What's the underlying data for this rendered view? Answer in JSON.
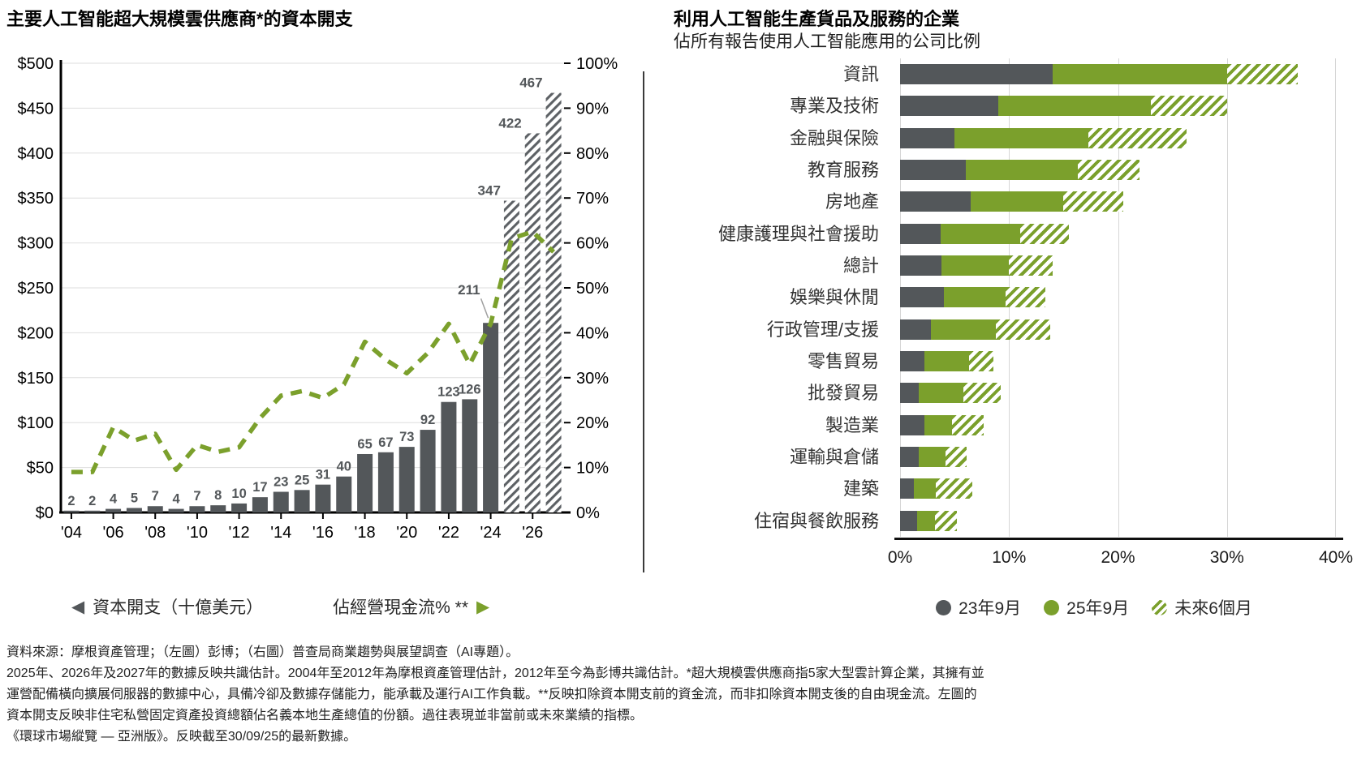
{
  "left": {
    "title": "主要人工智能超大規模雲供應商*的資本開支",
    "legend_bars": "資本開支（十億美元）",
    "legend_line": "佔經營現金流% **"
  },
  "right": {
    "title": "利用人工智能生產貨品及服務的企業",
    "subtitle": "佔所有報告使用人工智能應用的公司比例",
    "legend": [
      "23年9月",
      "25年9月",
      "未來6個月"
    ]
  },
  "footnotes": [
    "資料來源：摩根資產管理；（左圖）彭博；（右圖）普查局商業趨勢與展望調查（AI專題）。",
    "2025年、2026年及2027年的數據反映共識估計。2004年至2012年為摩根資產管理估計，2012年至今為彭博共識估計。*超大規模雲供應商指5家大型雲計算企業，其擁有並",
    "運營配備橫向擴展伺服器的數據中心，具備冷卻及數據存儲能力，能承載及運行AI工作負載。**反映扣除資本開支前的資金流，而非扣除資本開支後的自由現金流。左圖的",
    "資本開支反映非住宅私營固定資產投資總額佔名義本地生產總值的份額。過往表現並非當前或未來業績的指標。",
    "《環球市場縱覽 — 亞洲版》。反映截至30/09/25的最新數據。"
  ],
  "colors": {
    "dark": "#53575A",
    "green": "#7BA02C",
    "gridline": "#dedede",
    "hatch_dark": "#5d6165"
  },
  "chart_data": [
    {
      "type": "bar",
      "title": "主要人工智能超大規模雲供應商*的資本開支",
      "years": [
        2004,
        2005,
        2006,
        2007,
        2008,
        2009,
        2010,
        2011,
        2012,
        2013,
        2014,
        2015,
        2016,
        2017,
        2018,
        2019,
        2020,
        2021,
        2022,
        2023,
        2024,
        2025,
        2026,
        2027
      ],
      "x_tick_labels": [
        "'04",
        "'06",
        "'08",
        "'10",
        "'12",
        "'14",
        "'16",
        "'18",
        "'20",
        "'22",
        "'24",
        "'26"
      ],
      "series": [
        {
          "name": "資本開支（十億美元）",
          "type": "bar",
          "axis": "left",
          "values": [
            2,
            2,
            4,
            5,
            7,
            4,
            7,
            8,
            10,
            17,
            23,
            25,
            31,
            40,
            65,
            67,
            73,
            92,
            123,
            126,
            211,
            347,
            422,
            467
          ]
        },
        {
          "name": "佔經營現金流% **",
          "type": "line",
          "axis": "right",
          "values": [
            9,
            9,
            19,
            16,
            17.5,
            9.5,
            15,
            13.5,
            14.5,
            21,
            26,
            27,
            25.5,
            28.5,
            38,
            34,
            31,
            35.5,
            42,
            33,
            42,
            61,
            62.5,
            58
          ]
        }
      ],
      "forecast_hatched_years": [
        2025,
        2026,
        2027
      ],
      "ylim_left": [
        0,
        500
      ],
      "ylim_right": [
        0,
        100
      ],
      "left_tick_step": 50,
      "right_tick_step": 10,
      "grid": true,
      "legend_position": "bottom"
    },
    {
      "type": "bar",
      "orientation": "horizontal-stacked",
      "title": "利用人工智能生產貨品及服務的企業",
      "subtitle": "佔所有報告使用人工智能應用的公司比例",
      "categories": [
        "資訊",
        "專業及技術",
        "金融與保險",
        "教育服務",
        "房地產",
        "健康護理與社會援助",
        "總計",
        "娛樂與休閒",
        "行政管理/支援",
        "零售貿易",
        "批發貿易",
        "製造業",
        "運輸與倉儲",
        "建築",
        "住宿與餐飲服務"
      ],
      "series": [
        {
          "name": "23年9月",
          "note": "cumulative share %",
          "values": [
            14,
            9,
            5,
            6,
            6.5,
            3.7,
            3.8,
            4,
            2.8,
            2.2,
            1.7,
            2.2,
            1.7,
            1.3,
            1.6
          ]
        },
        {
          "name": "25年9月",
          "note": "cumulative share %",
          "values": [
            30,
            23,
            17.3,
            16.3,
            15,
            11,
            10,
            9.7,
            8.8,
            6.3,
            5.8,
            4.8,
            4.2,
            3.3,
            3.2
          ]
        },
        {
          "name": "未來6個月",
          "note": "cumulative share %",
          "values": [
            36.5,
            30,
            26.3,
            22,
            20.5,
            15.5,
            14,
            13.3,
            13.8,
            8.6,
            9.2,
            7.7,
            6.1,
            6.6,
            5.2
          ]
        }
      ],
      "xlim": [
        0,
        40
      ],
      "x_tick_labels": [
        "0%",
        "10%",
        "20%",
        "30%",
        "40%"
      ],
      "grid": true,
      "legend_position": "bottom"
    }
  ]
}
